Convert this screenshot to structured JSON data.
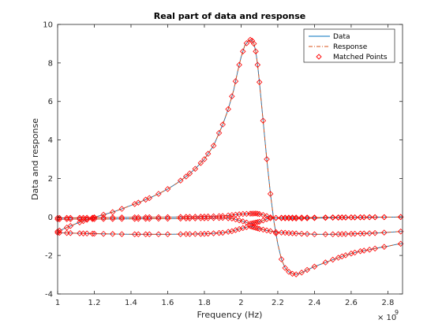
{
  "chart_data": {
    "type": "line",
    "title": "Real part of data and response",
    "xlabel": "Frequency (Hz)",
    "ylabel": "Data and response",
    "x_exponent_label": "× 10",
    "x_exponent_power": "9",
    "xlim": [
      1.0,
      2.88
    ],
    "ylim": [
      -4,
      10
    ],
    "xticks": [
      1,
      1.2,
      1.4,
      1.6,
      1.8,
      2,
      2.2,
      2.4,
      2.6,
      2.8
    ],
    "xtick_labels": [
      "1",
      "1.2",
      "1.4",
      "1.6",
      "1.8",
      "2",
      "2.2",
      "2.4",
      "2.6",
      "2.8"
    ],
    "yticks": [
      -4,
      -2,
      0,
      2,
      4,
      6,
      8,
      10
    ],
    "ytick_labels": [
      "-4",
      "-2",
      "0",
      "2",
      "4",
      "6",
      "8",
      "10"
    ],
    "legend": {
      "placement": "top-right",
      "entries": [
        {
          "label": "Data",
          "color": "#0072bd",
          "style": "solid"
        },
        {
          "label": "Response",
          "color": "#d95319",
          "style": "dashdot"
        },
        {
          "label": "Matched Points",
          "color": "#ff0000",
          "style": "diamond-marker"
        }
      ]
    },
    "colors": {
      "data": "#0072bd",
      "response": "#d95319",
      "markers": "#ff0000"
    },
    "series": [
      {
        "x": [
          1.0,
          1.05,
          1.1,
          1.15,
          1.2,
          1.25,
          1.3,
          1.35,
          1.4,
          1.45,
          1.5,
          1.55,
          1.6,
          1.65,
          1.7,
          1.75,
          1.8,
          1.85,
          1.9,
          1.93,
          1.96,
          1.98,
          2.0,
          2.02,
          2.04,
          2.05,
          2.06,
          2.07,
          2.08,
          2.09,
          2.1,
          2.12,
          2.14,
          2.16,
          2.18,
          2.2,
          2.22,
          2.24,
          2.26,
          2.28,
          2.3,
          2.32,
          2.34,
          2.36,
          2.4,
          2.45,
          2.5,
          2.55,
          2.6,
          2.65,
          2.7,
          2.75,
          2.8,
          2.85,
          2.88
        ],
        "y": [
          -0.75,
          -0.55,
          -0.35,
          -0.18,
          -0.02,
          0.12,
          0.25,
          0.42,
          0.6,
          0.78,
          0.98,
          1.2,
          1.45,
          1.75,
          2.1,
          2.5,
          3.0,
          3.7,
          4.8,
          5.6,
          6.6,
          7.5,
          8.3,
          8.9,
          9.15,
          9.2,
          9.15,
          9.0,
          8.6,
          7.9,
          7.0,
          5.0,
          3.0,
          1.2,
          -0.3,
          -1.4,
          -2.2,
          -2.65,
          -2.85,
          -2.95,
          -2.98,
          -2.93,
          -2.85,
          -2.75,
          -2.58,
          -2.4,
          -2.22,
          -2.05,
          -1.9,
          -1.78,
          -1.7,
          -1.6,
          -1.52,
          -1.42,
          -1.38
        ]
      },
      {
        "x": [
          1.0,
          1.2,
          1.4,
          1.6,
          1.8,
          1.9,
          1.95,
          2.0,
          2.05,
          2.08,
          2.1,
          2.13,
          2.16,
          2.2,
          2.3,
          2.4,
          2.5,
          2.6,
          2.7,
          2.8,
          2.88
        ],
        "y": [
          -0.05,
          -0.04,
          -0.02,
          -0.01,
          0.02,
          0.05,
          0.1,
          0.15,
          0.17,
          0.18,
          0.15,
          0.08,
          -0.02,
          -0.06,
          -0.08,
          -0.06,
          -0.04,
          -0.03,
          -0.02,
          -0.01,
          0.0
        ]
      },
      {
        "x": [
          1.0,
          1.2,
          1.4,
          1.6,
          1.8,
          1.9,
          1.95,
          2.0,
          2.05,
          2.1,
          2.15,
          2.2,
          2.3,
          2.4,
          2.5,
          2.6,
          2.7,
          2.8,
          2.88
        ],
        "y": [
          -0.12,
          -0.11,
          -0.1,
          -0.09,
          -0.07,
          -0.05,
          -0.08,
          -0.2,
          -0.35,
          -0.25,
          -0.08,
          -0.04,
          -0.03,
          -0.03,
          -0.02,
          -0.02,
          -0.01,
          -0.01,
          0.0
        ]
      },
      {
        "x": [
          1.0,
          1.2,
          1.4,
          1.6,
          1.8,
          1.9,
          1.95,
          2.0,
          2.05,
          2.1,
          2.15,
          2.2,
          2.3,
          2.4,
          2.5,
          2.6,
          2.7,
          2.8,
          2.88
        ],
        "y": [
          -0.82,
          -0.87,
          -0.9,
          -0.9,
          -0.88,
          -0.82,
          -0.74,
          -0.6,
          -0.48,
          -0.62,
          -0.72,
          -0.8,
          -0.86,
          -0.9,
          -0.9,
          -0.88,
          -0.85,
          -0.8,
          -0.75
        ]
      }
    ],
    "matched_points_x": [
      1.0,
      1.01,
      1.05,
      1.07,
      1.12,
      1.14,
      1.16,
      1.19,
      1.2,
      1.25,
      1.3,
      1.35,
      1.42,
      1.44,
      1.48,
      1.5,
      1.55,
      1.6,
      1.67,
      1.7,
      1.72,
      1.75,
      1.78,
      1.8,
      1.82,
      1.85,
      1.88,
      1.9,
      1.93,
      1.95,
      1.97,
      1.99,
      2.01,
      2.03,
      2.05,
      2.06,
      2.07,
      2.08,
      2.09,
      2.1,
      2.12,
      2.14,
      2.16,
      2.19,
      2.22,
      2.24,
      2.26,
      2.28,
      2.3,
      2.33,
      2.36,
      2.4,
      2.46,
      2.5,
      2.53,
      2.55,
      2.57,
      2.6,
      2.62,
      2.65,
      2.67,
      2.7,
      2.73,
      2.78,
      2.87
    ]
  }
}
